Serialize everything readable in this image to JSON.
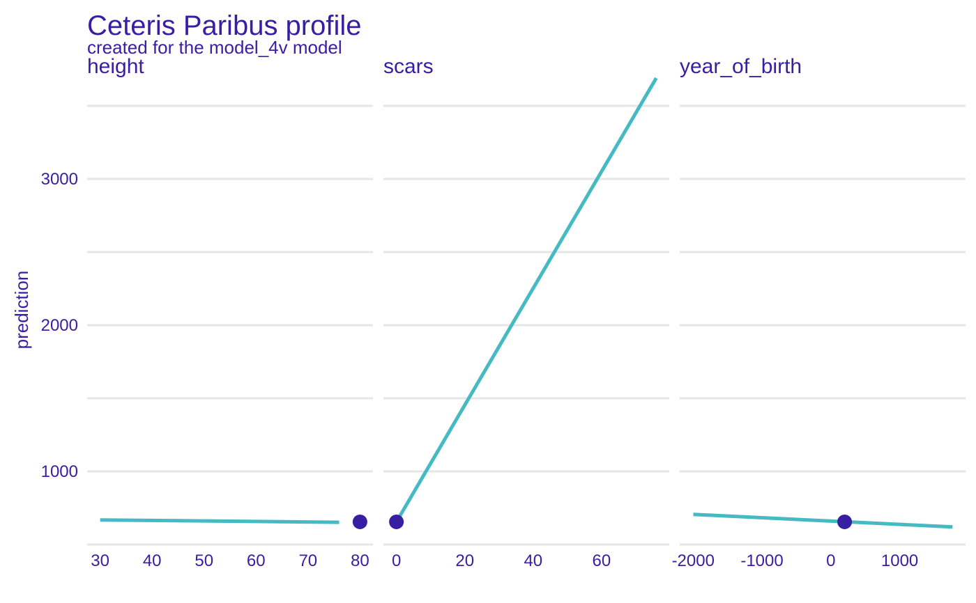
{
  "title": "Ceteris Paribus profile",
  "subtitle": "created for the model_4v model",
  "colors": {
    "text": "#371ea3",
    "line": "#46bac2",
    "point": "#371ea3",
    "grid": "#e6e6e6"
  },
  "chart_data": {
    "type": "line",
    "ylabel": "prediction",
    "ylim": [
      500,
      3700
    ],
    "yticks": [
      1000,
      2000,
      3000
    ],
    "ytick_labels": [
      "1000",
      "2000",
      "3000"
    ],
    "panels": [
      {
        "name": "height",
        "xlim": [
          27.5,
          82.5
        ],
        "xticks": [
          30,
          40,
          50,
          60,
          70,
          80
        ],
        "xtick_labels": [
          "30",
          "40",
          "50",
          "60",
          "70",
          "80"
        ],
        "line": [
          [
            30,
            668
          ],
          [
            76,
            652
          ]
        ],
        "point": [
          80,
          655
        ]
      },
      {
        "name": "scars",
        "xlim": [
          -3.8,
          79.8
        ],
        "xticks": [
          0,
          20,
          40,
          60
        ],
        "xtick_labels": [
          "0",
          "20",
          "40",
          "60"
        ],
        "line": [
          [
            0,
            655
          ],
          [
            76,
            3690
          ]
        ],
        "point": [
          0,
          655
        ]
      },
      {
        "name": "year_of_birth",
        "xlim": [
          -2195,
          1956
        ],
        "xticks": [
          -2000,
          -1000,
          0,
          1000
        ],
        "xtick_labels": [
          "-2000",
          "-1000",
          "0",
          "1000"
        ],
        "line": [
          [
            -1997,
            706
          ],
          [
            1767,
            620
          ]
        ],
        "point": [
          200,
          655
        ]
      }
    ]
  }
}
